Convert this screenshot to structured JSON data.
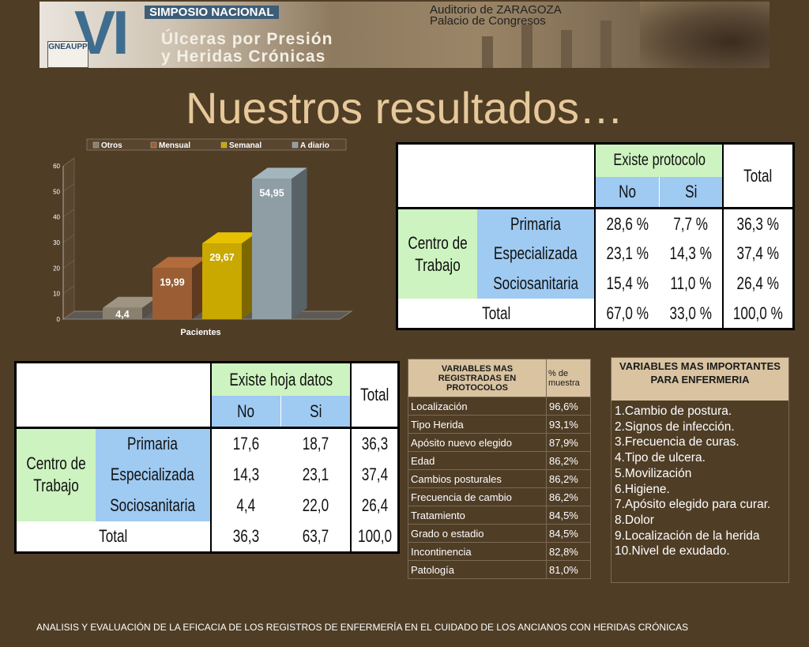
{
  "banner": {
    "numeral": "VI",
    "line0": "SIMPOSIO NACIONAL",
    "line1": "Úlceras por Presión",
    "line2": "y Heridas Crónicas",
    "venue1": "Auditorio de ZARAGOZA",
    "venue2": "Palacio de Congresos",
    "logo": "GNEAUPP"
  },
  "title": "Nuestros resultados…",
  "chart_data": {
    "type": "bar",
    "categories": [
      "Otros",
      "Mensual",
      "Semanal",
      "A diario"
    ],
    "values": [
      4.4,
      19.99,
      29.67,
      54.95
    ],
    "value_labels": [
      "4,4",
      "19,99",
      "29,67",
      "54,95"
    ],
    "colors": [
      "#8a8070",
      "#9b5e34",
      "#c9a800",
      "#8f9ea4"
    ],
    "legend": [
      "Otros",
      "Mensual",
      "Semanal",
      "A diario"
    ],
    "legend_position": "top",
    "xlabel": "Pacientes",
    "ylabel": "",
    "ylim": [
      0,
      60
    ],
    "yticks": [
      "0",
      "10",
      "20",
      "30",
      "40",
      "50",
      "60"
    ],
    "grid": true,
    "style": "3d"
  },
  "table1": {
    "header_group": "Existe protocolo",
    "col_no": "No",
    "col_si": "Si",
    "col_total": "Total",
    "row_group": "Centro de Trabajo",
    "rows": [
      {
        "label": "Primaria",
        "no": "28,6 %",
        "si": "7,7 %",
        "total": "36,3 %"
      },
      {
        "label": "Especializada",
        "no": "23,1 %",
        "si": "14,3 %",
        "total": "37,4 %"
      },
      {
        "label": "Sociosanitaria",
        "no": "15,4 %",
        "si": "11,0 %",
        "total": "26,4 %"
      }
    ],
    "total_row": {
      "label": "Total",
      "no": "67,0 %",
      "si": "33,0 %",
      "total": "100,0 %"
    }
  },
  "table2": {
    "header_group": "Existe hoja datos",
    "col_no": "No",
    "col_si": "Si",
    "col_total": "Total",
    "row_group": "Centro de Trabajo",
    "rows": [
      {
        "label": "Primaria",
        "no": "17,6",
        "si": "18,7",
        "total": "36,3"
      },
      {
        "label": "Especializada",
        "no": "14,3",
        "si": "23,1",
        "total": "37,4"
      },
      {
        "label": "Sociosanitaria",
        "no": "4,4",
        "si": "22,0",
        "total": "26,4"
      }
    ],
    "total_row": {
      "label": "Total",
      "no": "36,3",
      "si": "63,7",
      "total": "100,0"
    }
  },
  "table3": {
    "header_var": "VARIABLES MAS REGISTRADAS EN PROTOCOLOS",
    "header_pct": "% de muestra",
    "rows": [
      {
        "name": "Localización",
        "pct": "96,6%"
      },
      {
        "name": "Tipo Herida",
        "pct": "93,1%"
      },
      {
        "name": "Apósito nuevo elegido",
        "pct": "87,9%"
      },
      {
        "name": "Edad",
        "pct": "86,2%"
      },
      {
        "name": "Cambios posturales",
        "pct": "86,2%"
      },
      {
        "name": "Frecuencia de cambio",
        "pct": "86,2%"
      },
      {
        "name": "Tratamiento",
        "pct": "84,5%"
      },
      {
        "name": "Grado o estadio",
        "pct": "84,5%"
      },
      {
        "name": "Incontinencia",
        "pct": "82,8%"
      },
      {
        "name": "Patología",
        "pct": "81,0%"
      }
    ]
  },
  "box4": {
    "header": "VARIABLES MAS IMPORTANTES PARA ENFERMERIA",
    "items": [
      "1.Cambio de postura.",
      "2.Signos de infección.",
      "3.Frecuencia de curas.",
      "4.Tipo de ulcera.",
      "5.Movilización",
      "6.Higiene.",
      "7.Apósito elegido para curar.",
      "8.Dolor",
      "9.Localización de la herida",
      "10.Nivel de exudado."
    ]
  },
  "footer": "ANALISIS Y EVALUACIÓN DE LA EFICACIA DE LOS REGISTROS DE ENFERMERÍA EN EL CUIDADO DE LOS ANCIANOS CON HERIDAS CRÓNICAS"
}
